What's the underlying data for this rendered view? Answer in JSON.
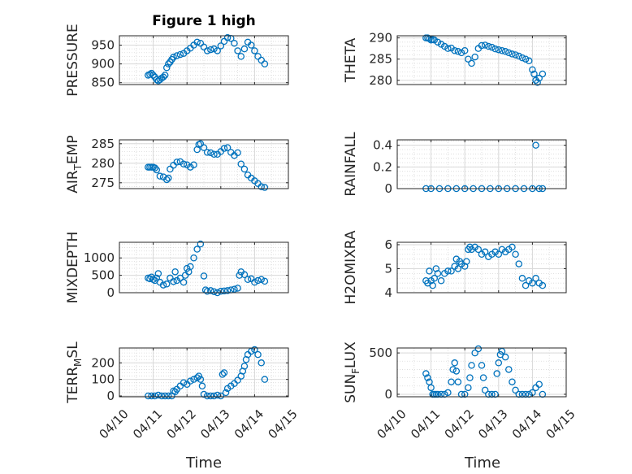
{
  "figure": {
    "title": "Figure 1 high",
    "xlabel": "Time",
    "date_ticks": [
      "04/10",
      "04/11",
      "04/12",
      "04/13",
      "04/14",
      "04/15"
    ],
    "marker_color": "#0072bd",
    "grid_color": "#d9d9d9",
    "axes_color": "#262626"
  },
  "chart_data": [
    {
      "type": "scatter",
      "ylabel": "PRESSURE",
      "xlim": [
        "04/10",
        "04/15"
      ],
      "ylim": [
        845,
        975
      ],
      "yticks": [
        850,
        900,
        950
      ],
      "x_days": [
        0.85,
        0.9,
        0.95,
        1.0,
        1.05,
        1.1,
        1.15,
        1.2,
        1.25,
        1.3,
        1.35,
        1.4,
        1.45,
        1.5,
        1.55,
        1.6,
        1.7,
        1.8,
        1.9,
        2.0,
        2.1,
        2.2,
        2.3,
        2.4,
        2.5,
        2.6,
        2.7,
        2.8,
        2.9,
        3.0,
        3.1,
        3.2,
        3.3,
        3.4,
        3.5,
        3.6,
        3.7,
        3.8,
        3.9,
        4.0,
        4.1,
        4.2,
        4.3
      ],
      "values": [
        870,
        872,
        875,
        870,
        865,
        858,
        855,
        858,
        862,
        865,
        870,
        890,
        900,
        905,
        912,
        918,
        922,
        925,
        928,
        935,
        942,
        950,
        958,
        955,
        945,
        935,
        938,
        940,
        935,
        948,
        960,
        970,
        968,
        955,
        935,
        920,
        940,
        958,
        950,
        935,
        920,
        910,
        900
      ]
    },
    {
      "type": "scatter",
      "ylabel": "THETA",
      "xlim": [
        "04/10",
        "04/15"
      ],
      "ylim": [
        279,
        290.5
      ],
      "yticks": [
        280,
        285,
        290
      ],
      "x_days": [
        0.85,
        0.9,
        0.95,
        1.0,
        1.05,
        1.1,
        1.2,
        1.3,
        1.4,
        1.5,
        1.6,
        1.7,
        1.8,
        1.9,
        2.0,
        2.1,
        2.2,
        2.3,
        2.4,
        2.5,
        2.6,
        2.7,
        2.8,
        2.9,
        3.0,
        3.1,
        3.2,
        3.3,
        3.4,
        3.5,
        3.6,
        3.7,
        3.8,
        3.9,
        4.0,
        4.05,
        4.1,
        4.15,
        4.2,
        4.3
      ],
      "values": [
        290,
        290,
        289.8,
        289.5,
        289.6,
        289.5,
        289,
        288.5,
        288,
        287.5,
        287.6,
        287,
        286.8,
        286.5,
        287,
        285,
        284,
        285.5,
        287.5,
        288.2,
        288.3,
        288,
        287.8,
        287.4,
        287.2,
        287,
        286.8,
        286.5,
        286.2,
        286,
        285.7,
        285.3,
        285,
        284.6,
        282.5,
        281.5,
        280,
        279.5,
        280.5,
        281.5
      ]
    },
    {
      "type": "scatter",
      "ylabel": "AIR_TEMP",
      "xlim": [
        "04/10",
        "04/15"
      ],
      "ylim": [
        273.5,
        286
      ],
      "yticks": [
        275,
        280,
        285
      ],
      "x_days": [
        0.85,
        0.9,
        0.95,
        1.0,
        1.05,
        1.1,
        1.2,
        1.3,
        1.4,
        1.45,
        1.5,
        1.6,
        1.7,
        1.8,
        1.9,
        2.0,
        2.1,
        2.2,
        2.3,
        2.35,
        2.4,
        2.5,
        2.6,
        2.7,
        2.8,
        2.9,
        3.0,
        3.1,
        3.2,
        3.3,
        3.4,
        3.5,
        3.6,
        3.7,
        3.8,
        3.9,
        4.0,
        4.1,
        4.2,
        4.3
      ],
      "values": [
        279,
        279,
        279,
        279,
        278.8,
        278.3,
        276.7,
        276.5,
        275.8,
        276.2,
        278.5,
        279.5,
        280.3,
        280.4,
        279.8,
        279.6,
        279,
        279.6,
        283.5,
        284.8,
        285,
        284,
        282.8,
        282.7,
        282.3,
        282.3,
        283,
        283.8,
        284,
        282.8,
        282,
        282.7,
        279.8,
        278.5,
        277,
        276.2,
        275.5,
        274.8,
        274,
        273.8
      ]
    },
    {
      "type": "scatter",
      "ylabel": "RAINFALL",
      "xlim": [
        "04/10",
        "04/15"
      ],
      "ylim": [
        0,
        0.45
      ],
      "yticks": [
        0,
        0.2,
        0.4
      ],
      "x_days": [
        0.85,
        1.0,
        1.25,
        1.5,
        1.75,
        2.0,
        2.25,
        2.5,
        2.75,
        3.0,
        3.25,
        3.5,
        3.75,
        4.0,
        4.1,
        4.2,
        4.3
      ],
      "values": [
        0,
        0,
        0,
        0,
        0,
        0,
        0,
        0,
        0,
        0,
        0,
        0,
        0,
        0,
        0.4,
        0,
        0
      ]
    },
    {
      "type": "scatter",
      "ylabel": "MIXDEPTH",
      "xlim": [
        "04/10",
        "04/15"
      ],
      "ylim": [
        0,
        1450
      ],
      "yticks": [
        0,
        500,
        1000
      ],
      "x_days": [
        0.85,
        0.9,
        0.95,
        1.0,
        1.05,
        1.1,
        1.15,
        1.2,
        1.3,
        1.4,
        1.5,
        1.6,
        1.65,
        1.7,
        1.8,
        1.9,
        1.95,
        2.0,
        2.05,
        2.1,
        2.2,
        2.3,
        2.4,
        2.5,
        2.55,
        2.6,
        2.7,
        2.8,
        2.9,
        3.0,
        3.1,
        3.2,
        3.3,
        3.4,
        3.5,
        3.55,
        3.6,
        3.7,
        3.8,
        3.9,
        4.0,
        4.1,
        4.2,
        4.3
      ],
      "values": [
        420,
        400,
        450,
        380,
        350,
        420,
        550,
        300,
        220,
        250,
        420,
        320,
        600,
        350,
        420,
        300,
        500,
        700,
        600,
        750,
        1000,
        1250,
        1400,
        480,
        80,
        40,
        60,
        30,
        0,
        40,
        50,
        60,
        80,
        100,
        130,
        500,
        600,
        520,
        380,
        400,
        300,
        350,
        380,
        330
      ]
    },
    {
      "type": "scatter",
      "ylabel": "H2OMIXRA",
      "xlim": [
        "04/10",
        "04/15"
      ],
      "ylim": [
        4,
        6.1
      ],
      "yticks": [
        4,
        5,
        6
      ],
      "x_days": [
        0.85,
        0.9,
        0.95,
        1.0,
        1.05,
        1.1,
        1.15,
        1.2,
        1.3,
        1.4,
        1.5,
        1.6,
        1.7,
        1.75,
        1.8,
        1.85,
        1.9,
        2.0,
        2.05,
        2.1,
        2.15,
        2.2,
        2.3,
        2.4,
        2.5,
        2.6,
        2.7,
        2.8,
        2.9,
        3.0,
        3.1,
        3.2,
        3.3,
        3.4,
        3.5,
        3.6,
        3.7,
        3.8,
        3.9,
        4.0,
        4.1,
        4.2,
        4.3
      ],
      "values": [
        4.5,
        4.4,
        4.9,
        4.5,
        4.3,
        4.6,
        5.0,
        4.8,
        4.5,
        4.8,
        4.9,
        4.9,
        5.1,
        5.4,
        5.0,
        5.3,
        5.2,
        5.1,
        5.3,
        5.8,
        5.9,
        5.8,
        5.9,
        5.8,
        5.6,
        5.7,
        5.5,
        5.6,
        5.7,
        5.6,
        5.8,
        5.7,
        5.8,
        5.9,
        5.6,
        5.2,
        4.6,
        4.3,
        4.5,
        4.4,
        4.6,
        4.4,
        4.3
      ]
    },
    {
      "type": "scatter",
      "ylabel": "TERR_MSL",
      "xlim": [
        "04/10",
        "04/15"
      ],
      "ylim": [
        -5,
        290
      ],
      "yticks": [
        0,
        100,
        200
      ],
      "x_days": [
        0.85,
        0.95,
        1.05,
        1.15,
        1.25,
        1.35,
        1.45,
        1.55,
        1.6,
        1.65,
        1.7,
        1.8,
        1.9,
        2.0,
        2.1,
        2.2,
        2.3,
        2.35,
        2.4,
        2.45,
        2.5,
        2.6,
        2.7,
        2.8,
        2.9,
        3.0,
        3.05,
        3.1,
        3.15,
        3.2,
        3.3,
        3.4,
        3.5,
        3.6,
        3.65,
        3.7,
        3.75,
        3.8,
        3.9,
        4.0,
        4.1,
        4.2,
        4.3
      ],
      "values": [
        0,
        0,
        0,
        5,
        0,
        0,
        0,
        0,
        30,
        25,
        40,
        60,
        80,
        70,
        90,
        100,
        110,
        120,
        100,
        60,
        10,
        0,
        0,
        0,
        5,
        0,
        130,
        140,
        20,
        45,
        60,
        75,
        95,
        120,
        150,
        180,
        220,
        250,
        270,
        280,
        250,
        200,
        100
      ]
    },
    {
      "type": "scatter",
      "ylabel": "SUN_FLUX",
      "xlim": [
        "04/10",
        "04/15"
      ],
      "ylim": [
        -30,
        560
      ],
      "yticks": [
        0,
        500
      ],
      "x_days": [
        0.85,
        0.9,
        0.95,
        1.0,
        1.05,
        1.1,
        1.15,
        1.2,
        1.3,
        1.4,
        1.5,
        1.6,
        1.65,
        1.7,
        1.75,
        1.8,
        1.9,
        2.0,
        2.1,
        2.15,
        2.2,
        2.3,
        2.4,
        2.5,
        2.55,
        2.6,
        2.7,
        2.8,
        2.9,
        2.95,
        3.0,
        3.05,
        3.1,
        3.2,
        3.3,
        3.4,
        3.5,
        3.6,
        3.7,
        3.8,
        3.9,
        4.0,
        4.1,
        4.2,
        4.3
      ],
      "values": [
        250,
        200,
        150,
        80,
        0,
        0,
        0,
        0,
        0,
        0,
        20,
        150,
        300,
        380,
        280,
        150,
        0,
        0,
        80,
        200,
        350,
        500,
        550,
        350,
        200,
        50,
        0,
        0,
        0,
        250,
        380,
        480,
        520,
        450,
        300,
        150,
        50,
        0,
        0,
        0,
        0,
        20,
        80,
        120,
        0
      ]
    }
  ]
}
